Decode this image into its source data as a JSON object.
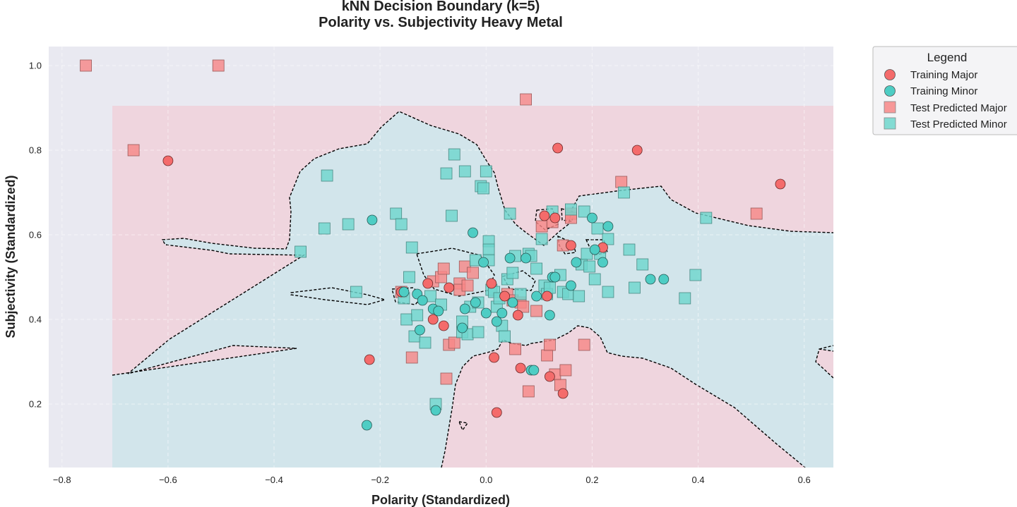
{
  "chart_data": {
    "type": "scatter",
    "title": "kNN Decision Boundary (k=5)",
    "subtitle": "Polarity vs. Subjectivity Heavy Metal",
    "xlabel": "Polarity (Standardized)",
    "ylabel": "Subjectivity (Standardized)",
    "xlim": [
      -0.825,
      0.655
    ],
    "ylim": [
      0.05,
      1.045
    ],
    "xticks": [
      -0.8,
      -0.6,
      -0.4,
      -0.2,
      0.0,
      0.2,
      0.4,
      0.6
    ],
    "xtick_labels": [
      "−0.8",
      "−0.6",
      "−0.4",
      "−0.2",
      "0.0",
      "0.2",
      "0.4",
      "0.6"
    ],
    "yticks": [
      0.2,
      0.4,
      0.6,
      0.8,
      1.0
    ],
    "ytick_labels": [
      "0.2",
      "0.4",
      "0.6",
      "0.8",
      "1.0"
    ],
    "grid": true,
    "legend": {
      "title": "Legend",
      "placement": "outside-upper-right",
      "entries": [
        "Training Major",
        "Training Minor",
        "Test Predicted Major",
        "Test Predicted Minor"
      ]
    },
    "colors": {
      "major": "#f46b6b",
      "minor": "#4ecdc4",
      "major_test": "#f78787",
      "minor_test": "#6fd6cd",
      "region_major": "#efd5de",
      "region_minor": "#d2e5eb",
      "plot_bg": "#e9e9f1"
    },
    "region_extent": {
      "x": [
        -0.705,
        0.655
      ],
      "y": [
        0.05,
        0.905
      ]
    },
    "series": [
      {
        "name": "Training Major",
        "marker": "circle",
        "x": [
          -0.6,
          -0.22,
          -0.16,
          -0.11,
          -0.1,
          -0.08,
          -0.07,
          0.01,
          0.015,
          0.02,
          0.035,
          0.06,
          0.065,
          0.11,
          0.115,
          0.12,
          0.13,
          0.135,
          0.145,
          0.16,
          0.22,
          0.285,
          0.555
        ],
        "y": [
          0.775,
          0.305,
          0.465,
          0.485,
          0.4,
          0.385,
          0.475,
          0.485,
          0.31,
          0.18,
          0.455,
          0.41,
          0.285,
          0.645,
          0.455,
          0.265,
          0.64,
          0.805,
          0.225,
          0.575,
          0.57,
          0.8,
          0.72
        ]
      },
      {
        "name": "Training Minor",
        "marker": "circle",
        "x": [
          -0.225,
          -0.215,
          -0.155,
          -0.13,
          -0.125,
          -0.12,
          -0.1,
          -0.095,
          -0.09,
          -0.045,
          -0.04,
          -0.025,
          -0.02,
          -0.005,
          0.0,
          0.02,
          0.03,
          0.045,
          0.05,
          0.075,
          0.085,
          0.09,
          0.095,
          0.12,
          0.125,
          0.13,
          0.16,
          0.17,
          0.2,
          0.205,
          0.22,
          0.23,
          0.31,
          0.335
        ],
        "y": [
          0.15,
          0.635,
          0.465,
          0.46,
          0.375,
          0.445,
          0.425,
          0.185,
          0.42,
          0.38,
          0.425,
          0.605,
          0.44,
          0.535,
          0.415,
          0.395,
          0.415,
          0.545,
          0.44,
          0.545,
          0.28,
          0.28,
          0.455,
          0.41,
          0.5,
          0.5,
          0.48,
          0.535,
          0.64,
          0.565,
          0.535,
          0.62,
          0.495,
          0.495
        ]
      },
      {
        "name": "Test Predicted Major",
        "marker": "square",
        "x": [
          -0.755,
          -0.505,
          -0.665,
          -0.16,
          -0.14,
          -0.1,
          -0.085,
          -0.08,
          -0.075,
          -0.07,
          -0.06,
          -0.05,
          -0.05,
          -0.04,
          -0.035,
          -0.025,
          0.04,
          0.05,
          0.055,
          0.065,
          0.07,
          0.075,
          0.08,
          0.095,
          0.105,
          0.115,
          0.12,
          0.125,
          0.13,
          0.14,
          0.145,
          0.15,
          0.16,
          0.16,
          0.185,
          0.255,
          0.51
        ],
        "y": [
          1.0,
          1.0,
          0.8,
          0.465,
          0.31,
          0.49,
          0.5,
          0.52,
          0.26,
          0.34,
          0.345,
          0.485,
          0.47,
          0.525,
          0.48,
          0.51,
          0.46,
          0.445,
          0.33,
          0.44,
          0.43,
          0.92,
          0.23,
          0.42,
          0.62,
          0.315,
          0.34,
          0.63,
          0.27,
          0.245,
          0.575,
          0.28,
          0.65,
          0.64,
          0.34,
          0.725,
          0.65
        ]
      },
      {
        "name": "Test Predicted Minor",
        "marker": "square",
        "x": [
          -0.35,
          -0.305,
          -0.3,
          -0.26,
          -0.245,
          -0.17,
          -0.16,
          -0.155,
          -0.15,
          -0.145,
          -0.14,
          -0.135,
          -0.13,
          -0.115,
          -0.105,
          -0.095,
          -0.085,
          -0.075,
          -0.065,
          -0.06,
          -0.045,
          -0.045,
          -0.04,
          -0.035,
          -0.03,
          -0.02,
          -0.015,
          -0.015,
          -0.01,
          -0.005,
          0.0,
          0.005,
          0.005,
          0.005,
          0.01,
          0.015,
          0.02,
          0.025,
          0.03,
          0.035,
          0.04,
          0.045,
          0.05,
          0.055,
          0.065,
          0.08,
          0.085,
          0.095,
          0.105,
          0.11,
          0.115,
          0.12,
          0.125,
          0.14,
          0.145,
          0.155,
          0.16,
          0.175,
          0.18,
          0.185,
          0.19,
          0.195,
          0.205,
          0.21,
          0.215,
          0.23,
          0.23,
          0.26,
          0.27,
          0.28,
          0.295,
          0.375,
          0.395,
          0.415
        ],
        "y": [
          0.56,
          0.615,
          0.74,
          0.625,
          0.465,
          0.65,
          0.625,
          0.45,
          0.4,
          0.5,
          0.57,
          0.36,
          0.41,
          0.345,
          0.455,
          0.2,
          0.435,
          0.745,
          0.645,
          0.79,
          0.37,
          0.395,
          0.75,
          0.365,
          0.43,
          0.54,
          0.44,
          0.37,
          0.715,
          0.71,
          0.75,
          0.585,
          0.565,
          0.54,
          0.47,
          0.465,
          0.43,
          0.45,
          0.385,
          0.36,
          0.495,
          0.65,
          0.51,
          0.55,
          0.46,
          0.555,
          0.55,
          0.52,
          0.59,
          0.48,
          0.46,
          0.475,
          0.655,
          0.505,
          0.465,
          0.46,
          0.66,
          0.455,
          0.53,
          0.655,
          0.555,
          0.525,
          0.495,
          0.615,
          0.555,
          0.465,
          0.59,
          0.7,
          0.565,
          0.475,
          0.53,
          0.45,
          0.505,
          0.64
        ]
      }
    ]
  }
}
